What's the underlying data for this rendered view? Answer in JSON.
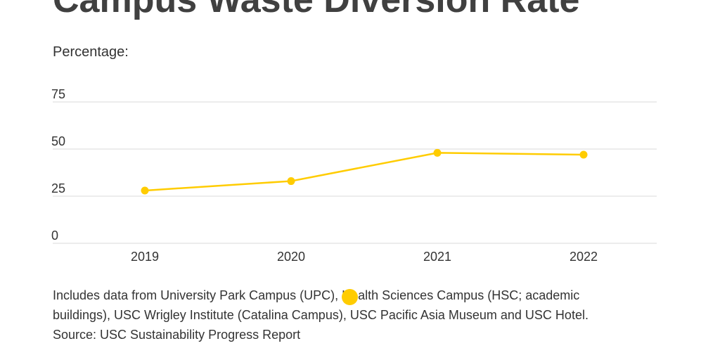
{
  "colors": {
    "series": "#FFCC00",
    "grid": "#D9D9D9",
    "text": "#333333",
    "title": "#404040"
  },
  "chart_data": {
    "type": "line",
    "title": "Campus Waste Diversion Rate",
    "subtitle": "Percentage:",
    "xlabel": "",
    "ylabel": "",
    "categories": [
      "2019",
      "2020",
      "2021",
      "2022"
    ],
    "series": [
      {
        "values": [
          28,
          33,
          48,
          47
        ],
        "color": "#FFCC00"
      }
    ],
    "ylim": [
      0,
      75
    ],
    "yticks": [
      "0",
      "25",
      "50",
      "75"
    ],
    "grid": true,
    "legend": "none"
  },
  "notes": {
    "line1": "Includes data from University Park Campus (UPC), Health Sciences Campus (HSC; academic",
    "line2": "buildings), USC Wrigley Institute (Catalina Campus), USC Pacific Asia Museum and USC Hotel.",
    "source": "Source: USC Sustainability Progress Report"
  }
}
